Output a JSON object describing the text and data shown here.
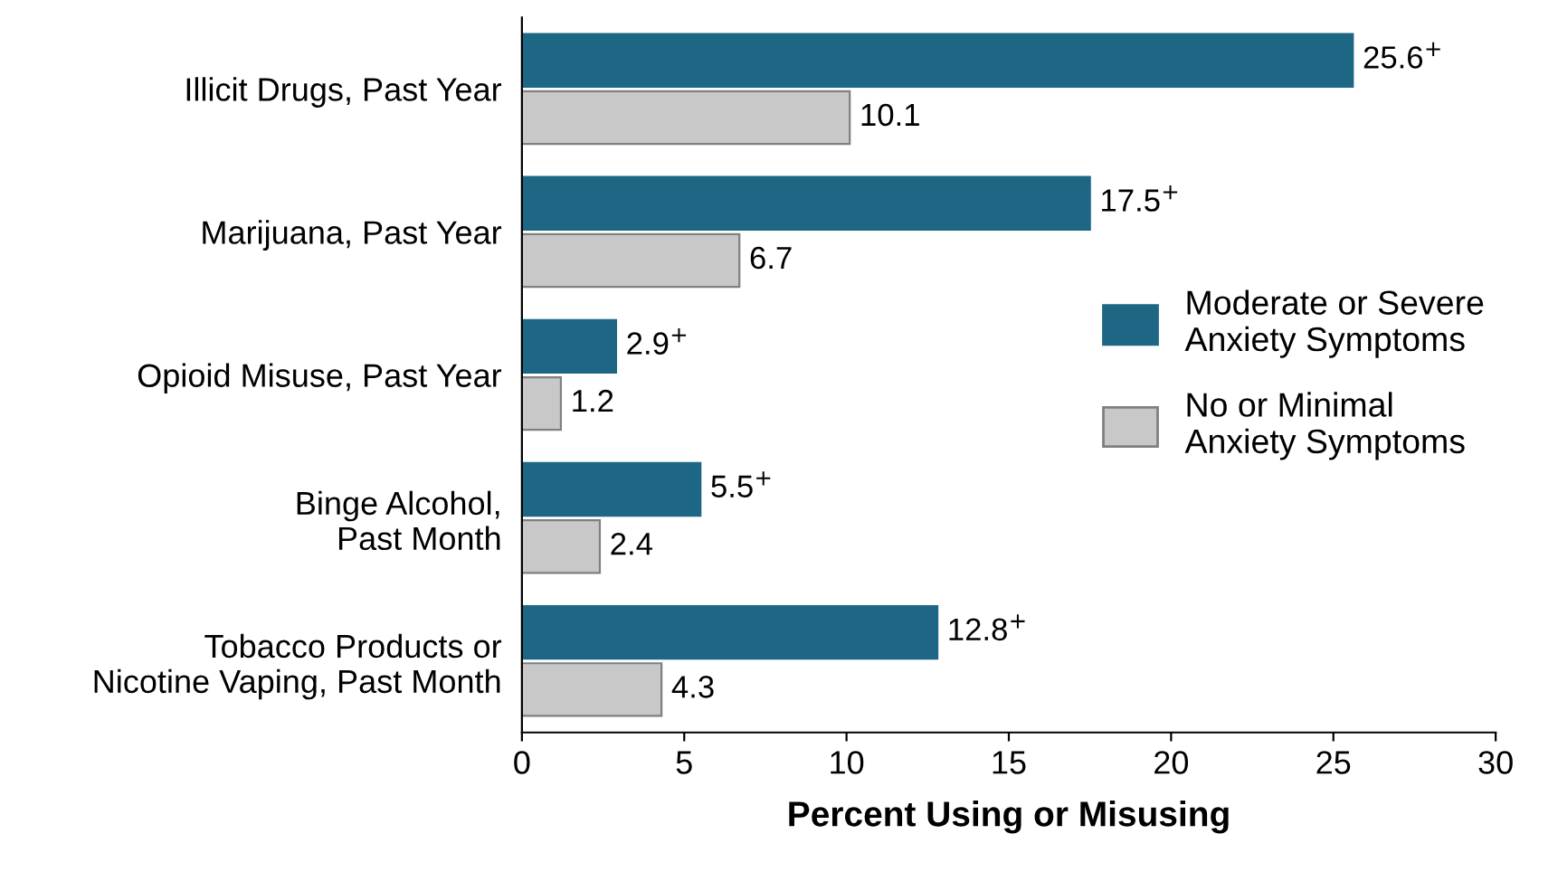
{
  "chart_data": {
    "type": "bar",
    "orientation": "horizontal",
    "xlabel": "Percent Using or Misusing",
    "categories": [
      "Illicit Drugs, Past Year",
      "Marijuana, Past Year",
      "Opioid Misuse, Past Year",
      "Binge Alcohol,\nPast Month",
      "Tobacco Products or\nNicotine Vaping, Past Month"
    ],
    "series": [
      {
        "name": "Moderate or Severe\nAnxiety Symptoms",
        "color": "#1d6785",
        "values": [
          25.6,
          17.5,
          2.9,
          5.5,
          12.8
        ],
        "value_labels": [
          "25.6$^{+}$",
          "17.5$^{+}$",
          "2.9$^{+}$",
          "5.5$^{+}$",
          "12.8$^{+}$"
        ]
      },
      {
        "name": "No or Minimal\nAnxiety Symptoms",
        "color": "#c8c8c8",
        "values": [
          10.1,
          6.7,
          1.2,
          2.4,
          4.3
        ],
        "value_labels": [
          "10.1",
          "6.7",
          "1.2",
          "2.4",
          "4.3"
        ]
      }
    ],
    "xlim": [
      0,
      30
    ],
    "xticks": [
      0,
      5,
      10,
      15,
      20,
      25,
      30
    ],
    "grid": false,
    "legend": "right"
  }
}
